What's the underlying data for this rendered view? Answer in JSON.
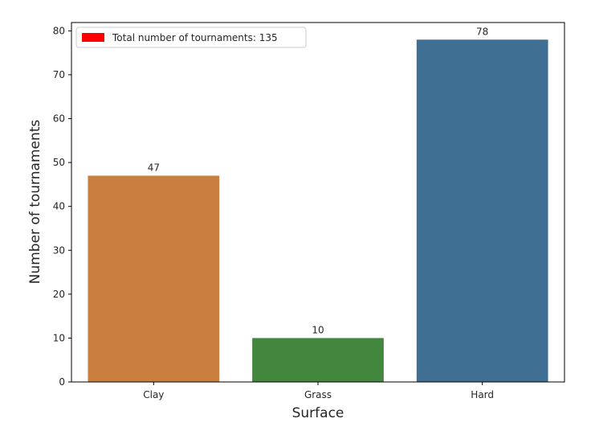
{
  "chart_data": {
    "type": "bar",
    "categories": [
      "Clay",
      "Grass",
      "Hard"
    ],
    "values": [
      47,
      10,
      78
    ],
    "bar_colors": [
      "#c97f40",
      "#43873f",
      "#3f7094"
    ],
    "xlabel": "Surface",
    "ylabel": "Number of tournaments",
    "ylim": [
      0,
      81.9
    ],
    "yticks": [
      0,
      10,
      20,
      30,
      40,
      50,
      60,
      70,
      80
    ],
    "grid": false,
    "legend": {
      "placement": "top-left",
      "entries": [
        {
          "label": "Total number of tournaments: 135",
          "color": "#ff0000"
        }
      ]
    }
  }
}
